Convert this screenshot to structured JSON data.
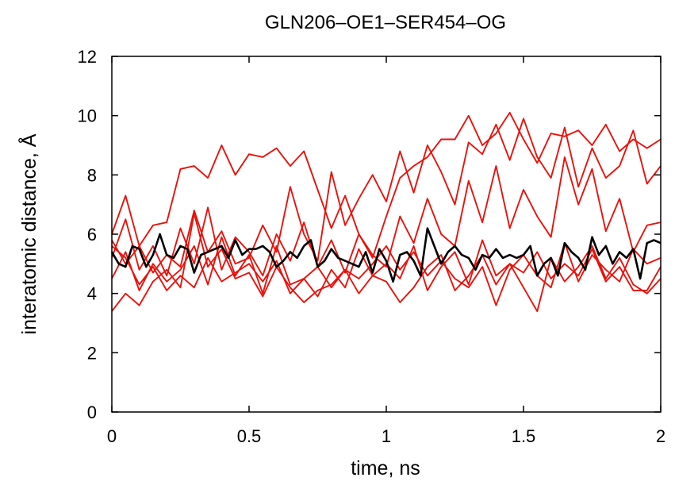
{
  "chart_data": {
    "type": "line",
    "title": "GLN206–OE1–SER454–OG",
    "xlabel": "time, ns",
    "ylabel": "interatomic distance, Å",
    "xlim": [
      0,
      2
    ],
    "ylim": [
      0,
      12
    ],
    "xticks": [
      0,
      0.5,
      1,
      1.5,
      2
    ],
    "xtick_labels": [
      "0",
      "0.5",
      "1",
      "1.5",
      "2"
    ],
    "yticks": [
      0,
      2,
      4,
      6,
      8,
      10,
      12
    ],
    "ytick_labels": [
      "0",
      "2",
      "4",
      "6",
      "8",
      "10",
      "12"
    ],
    "grid": false,
    "legend": "none",
    "colors": {
      "replica": "#e8120c",
      "reference": "#000000"
    },
    "series": [
      {
        "role": "replica",
        "color": "#e8120c",
        "x": [
          0,
          0.05,
          0.1,
          0.15,
          0.2,
          0.25,
          0.3,
          0.35,
          0.4,
          0.45,
          0.5,
          0.55,
          0.6,
          0.65,
          0.7,
          0.75,
          0.8,
          0.85,
          0.9,
          0.95,
          1.0,
          1.05,
          1.1,
          1.15,
          1.2,
          1.25,
          1.3,
          1.35,
          1.4,
          1.45,
          1.5,
          1.55,
          1.6,
          1.65,
          1.7,
          1.75,
          1.8,
          1.85,
          1.9,
          1.95,
          2.0
        ],
        "y": [
          6.0,
          7.3,
          5.6,
          6.3,
          6.4,
          8.2,
          8.3,
          7.9,
          9.0,
          8.0,
          8.7,
          8.6,
          8.9,
          8.3,
          8.8,
          7.5,
          6.2,
          7.3,
          6.0,
          5.2,
          6.6,
          7.9,
          8.3,
          8.6,
          9.2,
          9.2,
          10.0,
          9.0,
          9.4,
          10.1,
          9.2,
          8.4,
          9.4,
          9.3,
          9.5,
          9.0,
          9.7,
          8.8,
          9.2,
          8.9,
          9.2
        ]
      },
      {
        "role": "replica",
        "color": "#e8120c",
        "x": [
          0,
          0.05,
          0.1,
          0.15,
          0.2,
          0.25,
          0.3,
          0.35,
          0.4,
          0.45,
          0.5,
          0.55,
          0.6,
          0.65,
          0.7,
          0.75,
          0.8,
          0.85,
          0.9,
          0.95,
          1.0,
          1.05,
          1.1,
          1.15,
          1.2,
          1.25,
          1.3,
          1.35,
          1.4,
          1.45,
          1.5,
          1.55,
          1.6,
          1.65,
          1.7,
          1.75,
          1.8,
          1.85,
          1.9,
          1.95,
          2.0
        ],
        "y": [
          5.8,
          5.0,
          5.6,
          4.7,
          5.3,
          4.9,
          6.8,
          5.4,
          6.1,
          5.0,
          5.2,
          6.3,
          5.4,
          7.6,
          6.0,
          5.1,
          8.1,
          6.3,
          7.2,
          8.0,
          7.1,
          8.8,
          7.4,
          9.0,
          8.1,
          7.0,
          9.1,
          8.7,
          9.7,
          8.5,
          9.9,
          8.6,
          7.9,
          9.6,
          7.6,
          8.9,
          7.9,
          8.3,
          9.5,
          7.7,
          8.3
        ]
      },
      {
        "role": "replica",
        "color": "#e8120c",
        "x": [
          0,
          0.05,
          0.1,
          0.15,
          0.2,
          0.25,
          0.3,
          0.35,
          0.4,
          0.45,
          0.5,
          0.55,
          0.6,
          0.65,
          0.7,
          0.75,
          0.8,
          0.85,
          0.9,
          0.95,
          1.0,
          1.05,
          1.1,
          1.15,
          1.2,
          1.25,
          1.3,
          1.35,
          1.4,
          1.45,
          1.5,
          1.55,
          1.6,
          1.65,
          1.7,
          1.75,
          1.8,
          1.85,
          1.9,
          1.95,
          2.0
        ],
        "y": [
          5.2,
          6.5,
          4.8,
          5.6,
          4.6,
          6.2,
          5.0,
          6.9,
          4.8,
          5.9,
          5.4,
          4.6,
          6.0,
          5.1,
          6.4,
          4.9,
          5.8,
          4.7,
          6.0,
          5.3,
          4.9,
          6.6,
          5.7,
          7.2,
          6.0,
          5.6,
          7.8,
          6.4,
          8.3,
          6.2,
          7.5,
          6.6,
          5.9,
          8.6,
          7.0,
          8.2,
          6.1,
          7.2,
          5.4,
          6.3,
          6.4
        ]
      },
      {
        "role": "replica",
        "color": "#e8120c",
        "x": [
          0,
          0.05,
          0.1,
          0.15,
          0.2,
          0.25,
          0.3,
          0.35,
          0.4,
          0.45,
          0.5,
          0.55,
          0.6,
          0.65,
          0.7,
          0.75,
          0.8,
          0.85,
          0.9,
          0.95,
          1.0,
          1.05,
          1.1,
          1.15,
          1.2,
          1.25,
          1.3,
          1.35,
          1.4,
          1.45,
          1.5,
          1.55,
          1.6,
          1.65,
          1.7,
          1.75,
          1.8,
          1.85,
          1.9,
          1.95,
          2.0
        ],
        "y": [
          4.5,
          5.4,
          4.1,
          5.0,
          4.4,
          4.8,
          5.6,
          4.3,
          5.9,
          4.6,
          5.3,
          4.0,
          5.6,
          4.3,
          4.5,
          3.9,
          4.8,
          4.2,
          5.5,
          4.6,
          5.0,
          4.5,
          5.6,
          4.1,
          4.9,
          5.4,
          4.3,
          5.8,
          4.6,
          5.0,
          4.2,
          3.4,
          5.2,
          4.4,
          4.9,
          5.6,
          4.5,
          5.2,
          4.3,
          4.0,
          4.5
        ]
      },
      {
        "role": "replica",
        "color": "#e8120c",
        "x": [
          0,
          0.05,
          0.1,
          0.15,
          0.2,
          0.25,
          0.3,
          0.35,
          0.4,
          0.45,
          0.5,
          0.55,
          0.6,
          0.65,
          0.7,
          0.75,
          0.8,
          0.85,
          0.9,
          0.95,
          1.0,
          1.05,
          1.1,
          1.15,
          1.2,
          1.25,
          1.3,
          1.35,
          1.4,
          1.45,
          1.5,
          1.55,
          1.6,
          1.65,
          1.7,
          1.75,
          1.8,
          1.85,
          1.9,
          1.95,
          2.0
        ],
        "y": [
          3.4,
          4.0,
          3.6,
          4.4,
          4.8,
          4.2,
          6.7,
          4.9,
          5.5,
          4.5,
          4.7,
          3.9,
          4.9,
          4.2,
          3.7,
          4.1,
          4.3,
          4.8,
          4.0,
          4.6,
          4.4,
          3.7,
          4.2,
          4.9,
          5.3,
          4.1,
          4.6,
          5.3,
          4.3,
          5.0,
          4.7,
          5.4,
          4.5,
          5.0,
          4.6,
          5.5,
          4.4,
          4.9,
          4.1,
          4.1,
          4.9
        ]
      },
      {
        "role": "replica",
        "color": "#e8120c",
        "x": [
          0,
          0.05,
          0.1,
          0.15,
          0.2,
          0.25,
          0.3,
          0.35,
          0.4,
          0.45,
          0.5,
          0.55,
          0.6,
          0.65,
          0.7,
          0.75,
          0.8,
          0.85,
          0.9,
          0.95,
          1.0,
          1.05,
          1.1,
          1.15,
          1.2,
          1.25,
          1.3,
          1.35,
          1.4,
          1.45,
          1.5,
          1.55,
          1.6,
          1.65,
          1.7,
          1.75,
          1.8,
          1.85,
          1.9,
          1.95,
          2.0
        ],
        "y": [
          5.6,
          5.2,
          4.3,
          4.9,
          4.1,
          4.6,
          4.2,
          5.2,
          4.4,
          4.7,
          5.0,
          4.4,
          5.1,
          4.0,
          4.5,
          4.9,
          4.2,
          4.8,
          4.5,
          5.0,
          5.6,
          4.8,
          5.4,
          4.6,
          5.1,
          4.5,
          4.2,
          4.9,
          3.6,
          4.8,
          5.3,
          4.6,
          4.2,
          5.7,
          4.4,
          5.3,
          4.8,
          4.4,
          5.5,
          5.0,
          5.2
        ]
      },
      {
        "role": "reference",
        "color": "#000000",
        "x": [
          0,
          0.025,
          0.05,
          0.075,
          0.1,
          0.125,
          0.15,
          0.175,
          0.2,
          0.225,
          0.25,
          0.275,
          0.3,
          0.325,
          0.35,
          0.375,
          0.4,
          0.425,
          0.45,
          0.475,
          0.5,
          0.525,
          0.55,
          0.575,
          0.6,
          0.625,
          0.65,
          0.675,
          0.7,
          0.725,
          0.75,
          0.775,
          0.8,
          0.825,
          0.85,
          0.875,
          0.9,
          0.925,
          0.95,
          0.975,
          1.0,
          1.025,
          1.05,
          1.075,
          1.1,
          1.125,
          1.15,
          1.175,
          1.2,
          1.225,
          1.25,
          1.275,
          1.3,
          1.325,
          1.35,
          1.375,
          1.4,
          1.425,
          1.45,
          1.475,
          1.5,
          1.525,
          1.55,
          1.575,
          1.6,
          1.625,
          1.65,
          1.675,
          1.7,
          1.725,
          1.75,
          1.775,
          1.8,
          1.825,
          1.85,
          1.875,
          1.9,
          1.925,
          1.95,
          1.975,
          2.0
        ],
        "y": [
          5.4,
          5.0,
          4.9,
          5.6,
          5.5,
          4.9,
          5.3,
          6.0,
          5.3,
          5.2,
          5.6,
          5.5,
          4.7,
          5.3,
          5.4,
          5.5,
          5.6,
          5.2,
          5.8,
          5.3,
          5.5,
          5.5,
          5.6,
          5.4,
          4.9,
          5.1,
          5.4,
          5.2,
          5.6,
          5.8,
          4.9,
          5.1,
          5.5,
          5.2,
          5.1,
          5.0,
          4.9,
          5.4,
          4.7,
          5.5,
          5.1,
          4.4,
          5.3,
          5.4,
          5.1,
          4.6,
          6.2,
          5.6,
          5.0,
          5.4,
          5.6,
          5.3,
          5.2,
          4.8,
          5.3,
          5.2,
          5.5,
          5.2,
          5.3,
          5.2,
          5.3,
          5.6,
          4.6,
          5.0,
          5.2,
          4.6,
          5.7,
          5.4,
          5.2,
          4.8,
          5.9,
          5.3,
          5.6,
          5.0,
          5.4,
          5.2,
          5.5,
          4.5,
          5.7,
          5.8,
          5.7
        ]
      }
    ]
  }
}
